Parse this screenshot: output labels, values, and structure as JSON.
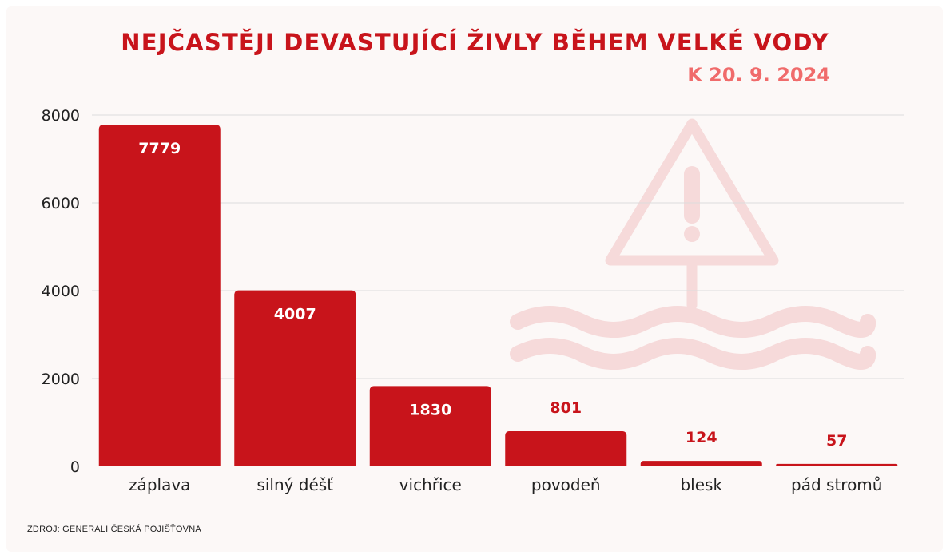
{
  "header": {
    "title": "NEJČASTĚJI DEVASTUJÍCÍ ŽIVLY BĚHEM VELKÉ VODY",
    "subtitle": "K 20. 9. 2024"
  },
  "footer": {
    "source": "ZDROJ: GENERALI ČESKÁ POJIŠŤOVNA"
  },
  "decoration": {
    "icon": "warning-flood-icon",
    "icon_color": "#f6dada"
  },
  "colors": {
    "bar": "#c8141b",
    "label_inside": "#ffffff",
    "label_outside": "#c8141b",
    "title": "#c8141b",
    "subtitle": "#f06b6b",
    "grid": "#dcdcdc"
  },
  "chart_data": {
    "type": "bar",
    "categories": [
      "záplava",
      "silný déšť",
      "vichřice",
      "povodeň",
      "blesk",
      "pád stromů"
    ],
    "values": [
      7779,
      4007,
      1830,
      801,
      124,
      57
    ],
    "title": "NEJČASTĚJI DEVASTUJÍCÍ ŽIVLY BĚHEM VELKÉ VODY",
    "xlabel": "",
    "ylabel": "",
    "ylim": [
      0,
      8000
    ],
    "yticks": [
      0,
      2000,
      4000,
      6000,
      8000
    ],
    "grid": true,
    "legend": "none"
  }
}
